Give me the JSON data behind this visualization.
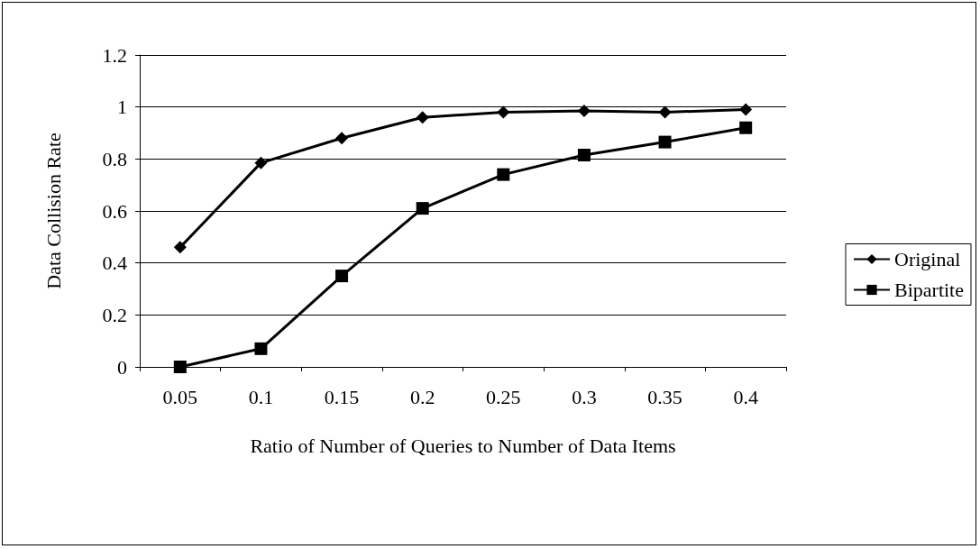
{
  "chart_data": {
    "type": "line",
    "xlabel": "Ratio of Number of Queries to Number of Data Items",
    "ylabel": "Data Collision Rate",
    "categories": [
      "0.05",
      "0.1",
      "0.15",
      "0.2",
      "0.25",
      "0.3",
      "0.35",
      "0.4"
    ],
    "series": [
      {
        "name": "Original",
        "color": "#000000",
        "marker": "diamond",
        "values": [
          0.46,
          0.785,
          0.88,
          0.96,
          0.98,
          0.985,
          0.98,
          0.99
        ]
      },
      {
        "name": "Bipartite",
        "color": "#000000",
        "marker": "square",
        "values": [
          0,
          0.07,
          0.35,
          0.61,
          0.74,
          0.815,
          0.865,
          0.92
        ]
      }
    ],
    "ylim": [
      0,
      1.2
    ],
    "yticks": [
      0,
      0.2,
      0.4,
      0.6,
      0.8,
      1,
      1.2
    ],
    "grid": "y",
    "legend": "right"
  }
}
